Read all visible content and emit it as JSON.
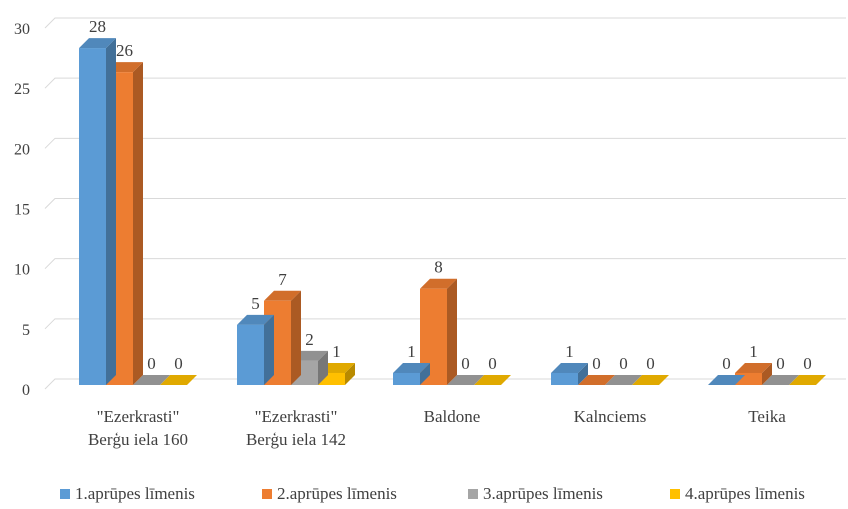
{
  "chart_data": {
    "type": "bar",
    "categories": [
      [
        "\"Ezerkrasti\"",
        "Berģu iela 160"
      ],
      [
        "\"Ezerkrasti\"",
        "Berģu iela 142"
      ],
      [
        "Baldone"
      ],
      [
        "Kalnciems"
      ],
      [
        "Teika"
      ]
    ],
    "series": [
      {
        "name": "1.aprūpes līmenis",
        "color": "#5B9BD5",
        "values": [
          28,
          5,
          1,
          1,
          0
        ]
      },
      {
        "name": "2.aprūpes līmenis",
        "color": "#ED7D31",
        "values": [
          26,
          7,
          8,
          0,
          1
        ]
      },
      {
        "name": "3.aprūpes līmenis",
        "color": "#A5A5A5",
        "values": [
          0,
          2,
          0,
          0,
          0
        ]
      },
      {
        "name": "4.aprūpes līmenis",
        "color": "#FFC000",
        "values": [
          0,
          1,
          0,
          0,
          0
        ]
      }
    ],
    "y_ticks": [
      "0",
      "5",
      "10",
      "15",
      "20",
      "25",
      "30"
    ],
    "ylim": [
      0,
      30
    ],
    "grid": true,
    "legend": "bottom",
    "style": "3d-clustered-column"
  }
}
